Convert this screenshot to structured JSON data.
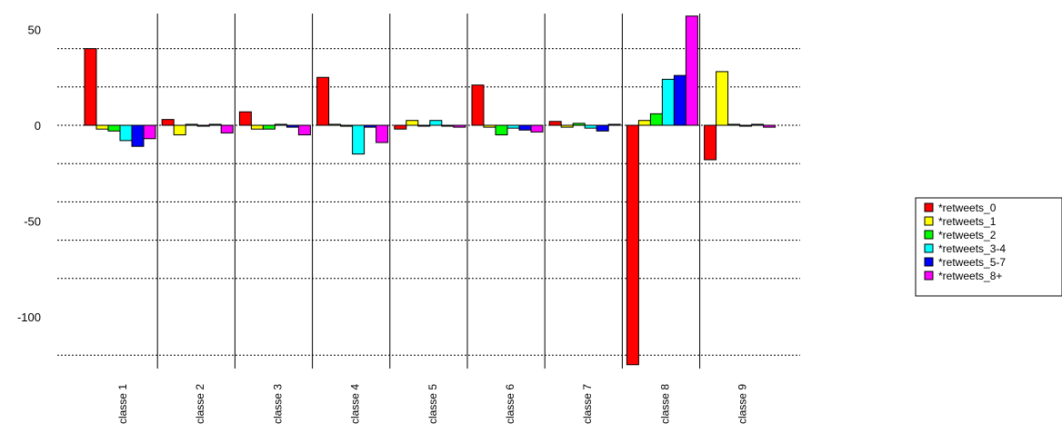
{
  "chart_data": {
    "type": "bar",
    "title": "",
    "xlabel": "",
    "ylabel": "",
    "ylim": [
      -125,
      57
    ],
    "yticks": [
      50,
      0,
      -50,
      -100
    ],
    "hgrid": [
      40,
      20,
      -20,
      -40,
      -60,
      -80,
      -120
    ],
    "categories": [
      "classe 1",
      "classe 2",
      "classe 3",
      "classe 4",
      "classe 5",
      "classe 6",
      "classe 7",
      "classe 8",
      "classe 9"
    ],
    "series": [
      {
        "name": "*retweets_0",
        "color": "#ff0000",
        "values": [
          40,
          3,
          7,
          25,
          -2,
          21,
          2,
          -125,
          -18
        ]
      },
      {
        "name": "*retweets_1",
        "color": "#ffff00",
        "values": [
          -2,
          -5,
          -2,
          0.5,
          2.5,
          -1,
          -1,
          2.5,
          28
        ]
      },
      {
        "name": "*retweets_2",
        "color": "#00ff00",
        "values": [
          -3,
          0.5,
          -2,
          -0.5,
          0,
          -5,
          1,
          6,
          0.5
        ]
      },
      {
        "name": "*retweets_3-4",
        "color": "#00ffff",
        "values": [
          -8,
          0,
          0.5,
          -15,
          2.5,
          -1.5,
          -1.5,
          24,
          0
        ]
      },
      {
        "name": "*retweets_5-7",
        "color": "#0000ff",
        "values": [
          -11,
          0.5,
          -1,
          -1,
          0,
          -2.5,
          -3,
          26,
          0.5
        ]
      },
      {
        "name": "*retweets_8+",
        "color": "#ff00ff",
        "values": [
          -7,
          -4,
          -5,
          -9,
          -1,
          -3.5,
          0.5,
          57,
          -1
        ]
      }
    ],
    "grid": true,
    "legend_position": "right"
  }
}
